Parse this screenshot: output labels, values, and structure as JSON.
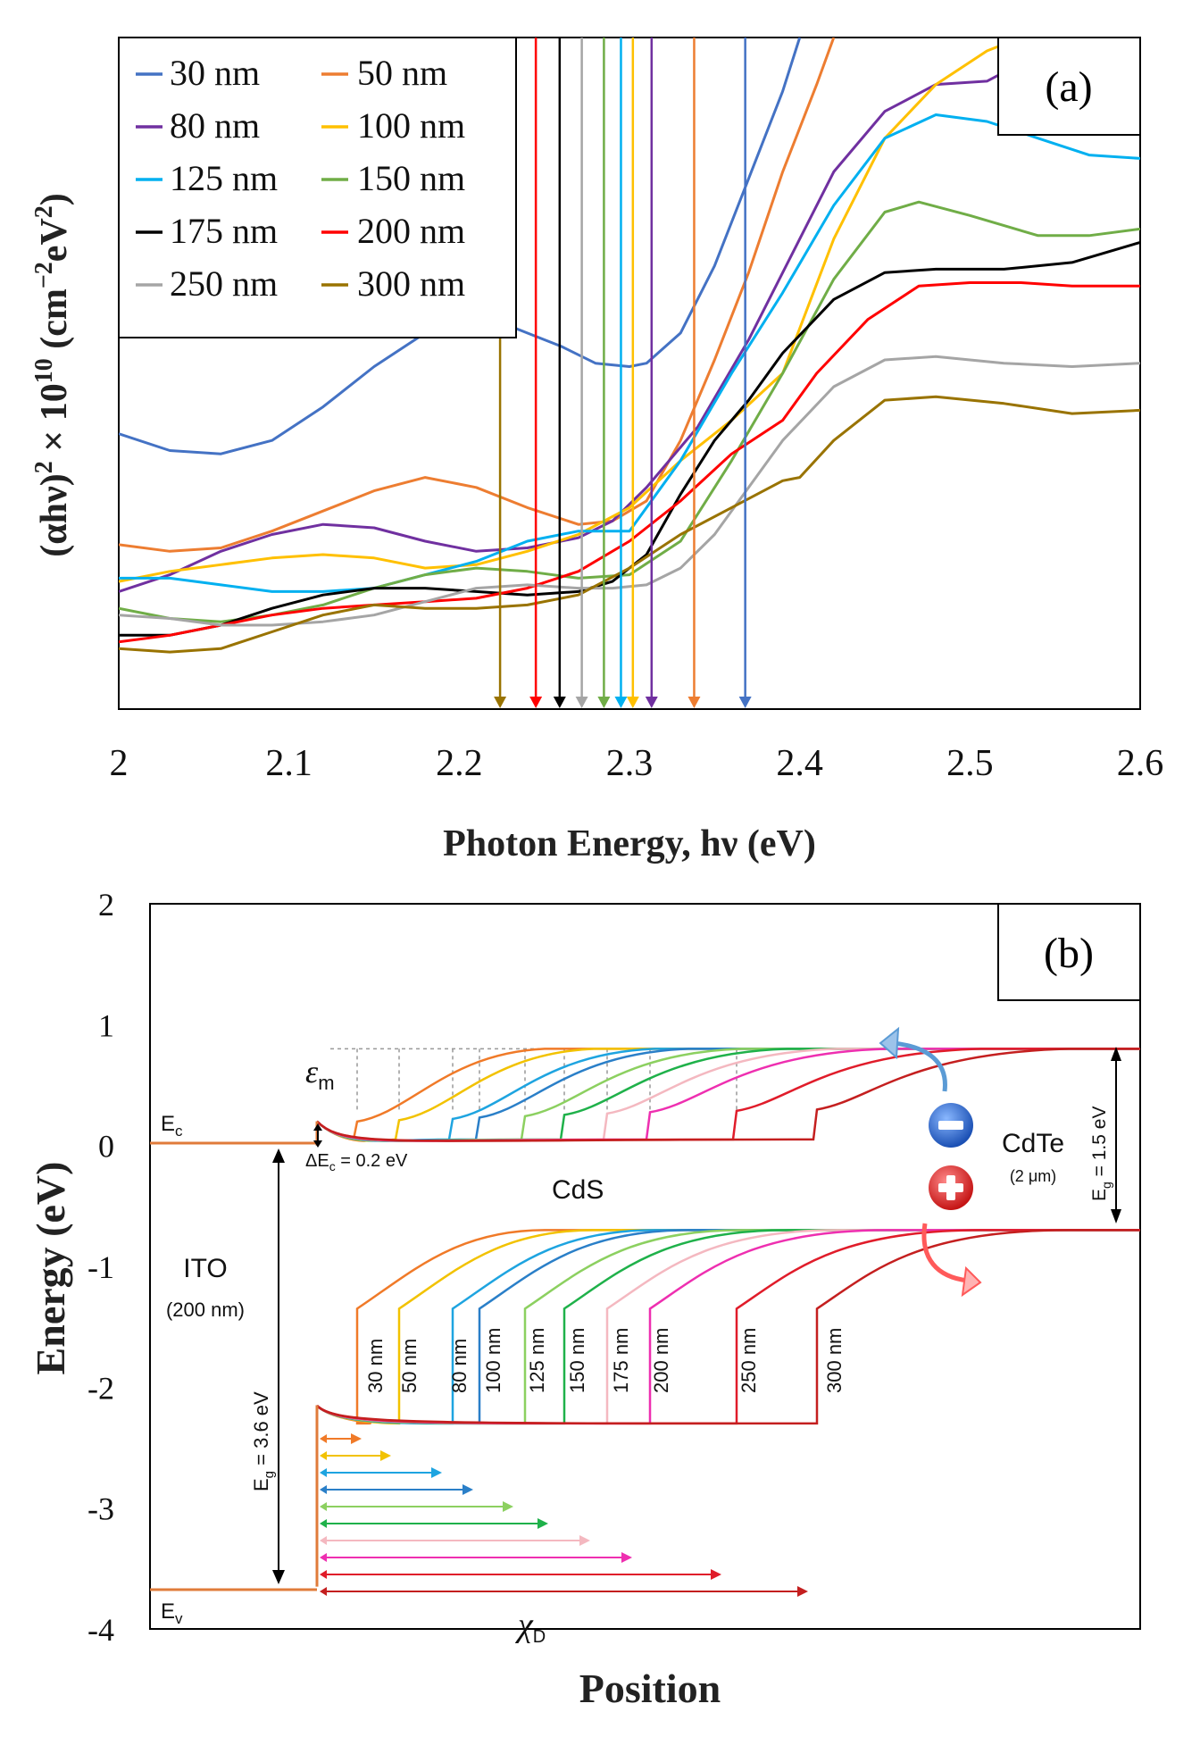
{
  "chart_data": [
    {
      "type": "line",
      "panel_label": "(a)",
      "xlabel": "Photon Energy, hν (eV)",
      "ylabel_parts": [
        "(αhν)",
        "2",
        " × 10",
        "10",
        " (cm",
        "−2",
        "eV",
        "2",
        ")"
      ],
      "xlim": [
        2.0,
        2.6
      ],
      "ylim": [
        0,
        100
      ],
      "xticks": [
        "2",
        "2.1",
        "2.2",
        "2.3",
        "2.4",
        "2.5",
        "2.6"
      ],
      "series": [
        {
          "name": "30 nm",
          "color": "#4472c4",
          "bandgap": 2.368,
          "x": [
            2.0,
            2.03,
            2.06,
            2.09,
            2.12,
            2.15,
            2.18,
            2.2,
            2.22,
            2.24,
            2.26,
            2.28,
            2.3,
            2.31,
            2.33,
            2.35,
            2.37,
            2.39,
            2.4
          ],
          "y": [
            41,
            38.5,
            38,
            40,
            45,
            51,
            56,
            58.5,
            58,
            56,
            54,
            51.5,
            51,
            51.5,
            56,
            66,
            79,
            92,
            100
          ]
        },
        {
          "name": "50 nm",
          "color": "#ed7d31",
          "bandgap": 2.338,
          "x": [
            2.0,
            2.03,
            2.06,
            2.09,
            2.12,
            2.15,
            2.18,
            2.21,
            2.24,
            2.27,
            2.29,
            2.31,
            2.33,
            2.35,
            2.37,
            2.39,
            2.41,
            2.42
          ],
          "y": [
            24.5,
            23.5,
            24,
            26.5,
            29.5,
            32.5,
            34.5,
            33,
            30,
            27.5,
            28,
            31,
            40,
            52,
            65,
            80,
            93,
            100
          ]
        },
        {
          "name": "80 nm",
          "color": "#7030a0",
          "bandgap": 2.313,
          "x": [
            2.0,
            2.03,
            2.06,
            2.09,
            2.12,
            2.15,
            2.18,
            2.21,
            2.24,
            2.27,
            2.29,
            2.31,
            2.34,
            2.37,
            2.4,
            2.42,
            2.45,
            2.48,
            2.51,
            2.54
          ],
          "y": [
            17.5,
            20,
            23.5,
            26,
            27.5,
            27,
            25,
            23.5,
            24,
            25.5,
            28,
            33,
            42,
            55,
            70,
            80,
            89,
            93,
            93.5,
            97.5
          ]
        },
        {
          "name": "100 nm",
          "color": "#ffc000",
          "bandgap": 2.302,
          "x": [
            2.0,
            2.03,
            2.06,
            2.09,
            2.12,
            2.15,
            2.18,
            2.21,
            2.24,
            2.27,
            2.3,
            2.33,
            2.36,
            2.39,
            2.42,
            2.45,
            2.48,
            2.51,
            2.53
          ],
          "y": [
            19,
            20.5,
            21.5,
            22.5,
            23,
            22.5,
            21,
            21.5,
            23.5,
            26,
            30,
            37,
            43,
            50,
            70,
            85,
            93,
            98,
            100
          ]
        },
        {
          "name": "125 nm",
          "color": "#00b0f0",
          "bandgap": 2.295,
          "x": [
            2.0,
            2.03,
            2.06,
            2.09,
            2.12,
            2.15,
            2.18,
            2.21,
            2.24,
            2.27,
            2.3,
            2.33,
            2.36,
            2.39,
            2.42,
            2.45,
            2.48,
            2.51,
            2.54,
            2.57,
            2.6
          ],
          "y": [
            19.5,
            19.5,
            18.5,
            17.5,
            17.5,
            18,
            20,
            22,
            25,
            26.5,
            26.5,
            37,
            50,
            62,
            75,
            85,
            88.5,
            87.5,
            85,
            82.5,
            82
          ]
        },
        {
          "name": "150 nm",
          "color": "#70ad47",
          "bandgap": 2.285,
          "x": [
            2.0,
            2.03,
            2.06,
            2.09,
            2.12,
            2.15,
            2.18,
            2.21,
            2.24,
            2.27,
            2.3,
            2.33,
            2.36,
            2.39,
            2.42,
            2.45,
            2.47,
            2.5,
            2.54,
            2.57,
            2.6
          ],
          "y": [
            15,
            13.5,
            13,
            14,
            15.5,
            18,
            20,
            21,
            20.5,
            19.5,
            20,
            25,
            37,
            50,
            64,
            74,
            75.5,
            73.5,
            70.5,
            70.5,
            71.5
          ]
        },
        {
          "name": "175 nm",
          "color": "#000000",
          "bandgap": 2.259,
          "x": [
            2.0,
            2.03,
            2.06,
            2.09,
            2.12,
            2.15,
            2.18,
            2.21,
            2.24,
            2.27,
            2.29,
            2.31,
            2.33,
            2.35,
            2.37,
            2.39,
            2.42,
            2.45,
            2.48,
            2.52,
            2.56,
            2.6
          ],
          "y": [
            11,
            11,
            12.5,
            15,
            17,
            18,
            18,
            17.5,
            17,
            17.5,
            19,
            23,
            32,
            40,
            46,
            53,
            61,
            65,
            65.5,
            65.5,
            66.5,
            69.5
          ]
        },
        {
          "name": "200 nm",
          "color": "#ff0000",
          "bandgap": 2.245,
          "x": [
            2.0,
            2.03,
            2.06,
            2.09,
            2.12,
            2.15,
            2.18,
            2.21,
            2.24,
            2.27,
            2.3,
            2.33,
            2.36,
            2.39,
            2.41,
            2.44,
            2.47,
            2.5,
            2.53,
            2.56,
            2.6
          ],
          "y": [
            10,
            11,
            12.5,
            14,
            15,
            15.5,
            16,
            16.5,
            18,
            20.5,
            25,
            31,
            38,
            43,
            50,
            58,
            63,
            63.5,
            63.5,
            63,
            63
          ]
        },
        {
          "name": "250 nm",
          "color": "#a5a5a5",
          "bandgap": 2.272,
          "x": [
            2.0,
            2.03,
            2.06,
            2.09,
            2.12,
            2.15,
            2.18,
            2.21,
            2.24,
            2.27,
            2.29,
            2.31,
            2.33,
            2.35,
            2.37,
            2.39,
            2.42,
            2.45,
            2.48,
            2.52,
            2.56,
            2.6
          ],
          "y": [
            14,
            13.5,
            12.5,
            12.5,
            13,
            14,
            16,
            18,
            18.5,
            18,
            18,
            18.5,
            21,
            26,
            33,
            40,
            48,
            52,
            52.5,
            51.5,
            51,
            51.5
          ]
        },
        {
          "name": "300 nm",
          "color": "#997300",
          "bandgap": 2.224,
          "x": [
            2.0,
            2.03,
            2.06,
            2.09,
            2.12,
            2.15,
            2.18,
            2.21,
            2.24,
            2.27,
            2.3,
            2.33,
            2.36,
            2.39,
            2.4,
            2.42,
            2.45,
            2.48,
            2.52,
            2.56,
            2.6
          ],
          "y": [
            9,
            8.5,
            9,
            11.5,
            14,
            15.5,
            15,
            15,
            15.5,
            17,
            21,
            26,
            30,
            34,
            34.5,
            40,
            46,
            46.5,
            45.5,
            44,
            44.5
          ]
        }
      ]
    },
    {
      "type": "diagram",
      "panel_label": "(b)",
      "xlabel": "Position",
      "ylabel": "Energy (eV)",
      "ylim": [
        -4,
        2
      ],
      "yticks": [
        "2",
        "1",
        "0",
        "-1",
        "-2",
        "-3",
        "-4"
      ],
      "labels": {
        "ec": "E",
        "ec_sub": "c",
        "ev": "E",
        "ev_sub": "v",
        "em": "ε",
        "em_sub": "m",
        "delta_ec": "ΔE",
        "delta_ec_sub": "c",
        "delta_ec_value": " = 0.2 eV",
        "cds": "CdS",
        "ito": "ITO",
        "ito_thickness": "(200 nm)",
        "cdte": "CdTe",
        "cdte_thickness": "(2 μm)",
        "eg_ito": "E",
        "eg_ito_sub": "g",
        "eg_ito_value": " = 3.6 eV",
        "eg_cdte": "E",
        "eg_cdte_sub": "g",
        "eg_cdte_value": " = 1.5 eV",
        "xd": "χ",
        "xd_sub": "D",
        "electron": "−",
        "hole": "+"
      },
      "thickness_labels": [
        "30 nm",
        "50 nm",
        "80 nm",
        "100 nm",
        "125 nm",
        "150 nm",
        "175 nm",
        "200 nm",
        "250 nm",
        "300 nm"
      ],
      "thickness_colors": [
        "#f07a28",
        "#f2c200",
        "#1ea4e0",
        "#2a7fc8",
        "#8cd060",
        "#1fb14a",
        "#f4b8c0",
        "#ee2fb0",
        "#e01c2a",
        "#c41f1f"
      ],
      "cds_ec_eV": 0.05,
      "cds_ev_eV": -2.3,
      "cdte_ec_eV": 0.8,
      "cdte_ev_eV": -0.7
    }
  ]
}
